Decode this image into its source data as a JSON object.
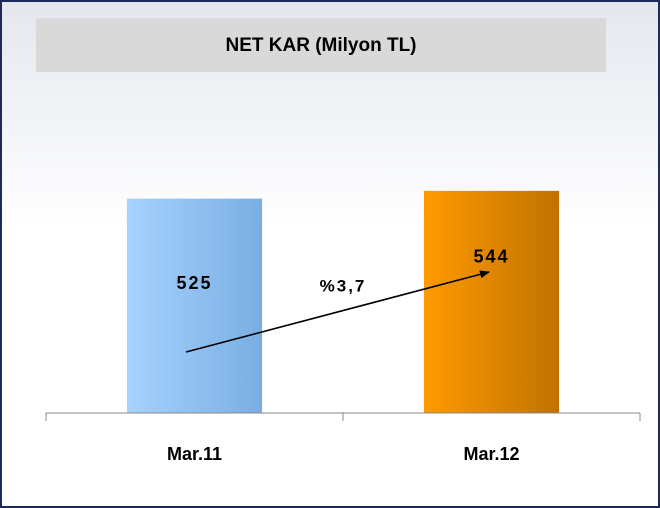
{
  "chart_data": {
    "type": "bar",
    "title": "NET KAR (Milyon TL)",
    "categories": [
      "Mar.11",
      "Mar.12"
    ],
    "values": [
      525,
      544
    ],
    "colors": [
      [
        "#a6d2ff",
        "#7aaee2"
      ],
      [
        "#ff9a00",
        "#c07200"
      ]
    ],
    "ylim": [
      0,
      600
    ],
    "annotations": [
      "%3,7"
    ]
  }
}
